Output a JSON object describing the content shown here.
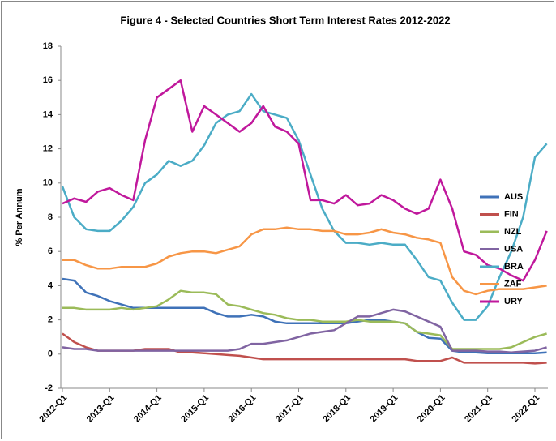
{
  "chart_data": {
    "type": "line",
    "title": "Figure 4 - Selected Countries Short Term Interest Rates 2012-2022",
    "y_label": "% Per Annum",
    "categories": [
      "2012-Q1",
      null,
      null,
      null,
      "2013-Q1",
      null,
      null,
      null,
      "2014-Q1",
      null,
      null,
      null,
      "2015-Q1",
      null,
      null,
      null,
      "2016-Q1",
      null,
      null,
      null,
      "2017-Q1",
      null,
      null,
      null,
      "2018-Q1",
      null,
      null,
      null,
      "2019-Q1",
      null,
      null,
      null,
      "2020-Q1",
      null,
      null,
      null,
      "2021-Q1",
      null,
      null,
      null,
      "2022-Q1",
      null
    ],
    "series": [
      {
        "name": "AUS",
        "color": "#3f72b8",
        "values": [
          4.4,
          4.3,
          3.6,
          3.4,
          3.1,
          2.9,
          2.7,
          2.7,
          2.7,
          2.7,
          2.7,
          2.7,
          2.7,
          2.4,
          2.2,
          2.2,
          2.3,
          2.2,
          1.9,
          1.8,
          1.8,
          1.8,
          1.8,
          1.8,
          1.8,
          1.9,
          2.0,
          2.0,
          1.9,
          1.8,
          1.3,
          0.95,
          0.9,
          0.2,
          0.1,
          0.1,
          0.05,
          0.05,
          0.05,
          0.05,
          0.05,
          0.1
        ]
      },
      {
        "name": "FIN",
        "color": "#c0504d",
        "values": [
          1.2,
          0.7,
          0.4,
          0.2,
          0.2,
          0.2,
          0.2,
          0.3,
          0.3,
          0.3,
          0.1,
          0.1,
          0.05,
          0,
          -0.05,
          -0.1,
          -0.2,
          -0.3,
          -0.3,
          -0.3,
          -0.3,
          -0.3,
          -0.3,
          -0.3,
          -0.3,
          -0.3,
          -0.3,
          -0.3,
          -0.3,
          -0.3,
          -0.4,
          -0.4,
          -0.4,
          -0.2,
          -0.5,
          -0.5,
          -0.5,
          -0.5,
          -0.5,
          -0.5,
          -0.55,
          -0.5
        ]
      },
      {
        "name": "NZL",
        "color": "#9bbb59",
        "values": [
          2.7,
          2.7,
          2.6,
          2.6,
          2.6,
          2.7,
          2.6,
          2.7,
          2.8,
          3.2,
          3.7,
          3.6,
          3.6,
          3.5,
          2.9,
          2.8,
          2.6,
          2.4,
          2.3,
          2.1,
          2.0,
          2.0,
          1.9,
          1.9,
          1.9,
          2.0,
          1.9,
          1.9,
          1.9,
          1.8,
          1.3,
          1.2,
          1.1,
          0.3,
          0.3,
          0.3,
          0.3,
          0.3,
          0.4,
          0.7,
          1.0,
          1.2
        ]
      },
      {
        "name": "USA",
        "color": "#8064a2",
        "values": [
          0.4,
          0.3,
          0.3,
          0.2,
          0.2,
          0.2,
          0.2,
          0.2,
          0.2,
          0.2,
          0.2,
          0.2,
          0.2,
          0.2,
          0.2,
          0.3,
          0.6,
          0.6,
          0.7,
          0.8,
          1.0,
          1.2,
          1.3,
          1.4,
          1.8,
          2.2,
          2.2,
          2.4,
          2.6,
          2.5,
          2.2,
          1.9,
          1.6,
          0.2,
          0.2,
          0.2,
          0.15,
          0.15,
          0.1,
          0.15,
          0.2,
          0.4
        ]
      },
      {
        "name": "BRA",
        "color": "#4bacc6",
        "values": [
          9.8,
          8.0,
          7.3,
          7.2,
          7.2,
          7.8,
          8.6,
          10.0,
          10.5,
          11.3,
          11.0,
          11.3,
          12.2,
          13.5,
          14.0,
          14.2,
          15.2,
          14.2,
          14.0,
          13.8,
          12.5,
          10.5,
          8.5,
          7.2,
          6.5,
          6.5,
          6.4,
          6.5,
          6.4,
          6.4,
          5.5,
          4.5,
          4.3,
          3.0,
          2.0,
          2.0,
          2.8,
          4.5,
          6.0,
          8.0,
          11.5,
          12.3
        ]
      },
      {
        "name": "ZAF",
        "color": "#f79646",
        "values": [
          5.5,
          5.5,
          5.2,
          5.0,
          5.0,
          5.1,
          5.1,
          5.1,
          5.3,
          5.7,
          5.9,
          6.0,
          6.0,
          5.9,
          6.1,
          6.3,
          7.0,
          7.3,
          7.3,
          7.4,
          7.3,
          7.3,
          7.2,
          7.2,
          7.0,
          7.0,
          7.1,
          7.3,
          7.1,
          7.0,
          6.8,
          6.7,
          6.5,
          4.5,
          3.7,
          3.5,
          3.7,
          3.8,
          3.8,
          3.8,
          3.9,
          4.0
        ]
      },
      {
        "name": "URY",
        "color": "#c0189c",
        "values": [
          8.8,
          9.1,
          8.9,
          9.5,
          9.7,
          9.3,
          9.0,
          12.5,
          15.0,
          15.5,
          16.0,
          13.0,
          14.5,
          14.0,
          13.5,
          13.0,
          13.5,
          14.5,
          13.3,
          13.0,
          12.3,
          9.0,
          9.0,
          8.8,
          9.3,
          8.7,
          8.8,
          9.3,
          9.0,
          8.5,
          8.2,
          8.5,
          10.2,
          8.5,
          6.0,
          5.8,
          5.2,
          5.0,
          4.6,
          4.3,
          5.5,
          7.2
        ]
      }
    ],
    "ylim": [
      -2,
      18
    ],
    "yticks": [
      -2,
      0,
      2,
      4,
      6,
      8,
      10,
      12,
      14,
      16,
      18
    ],
    "grid": false,
    "legend": "right"
  }
}
